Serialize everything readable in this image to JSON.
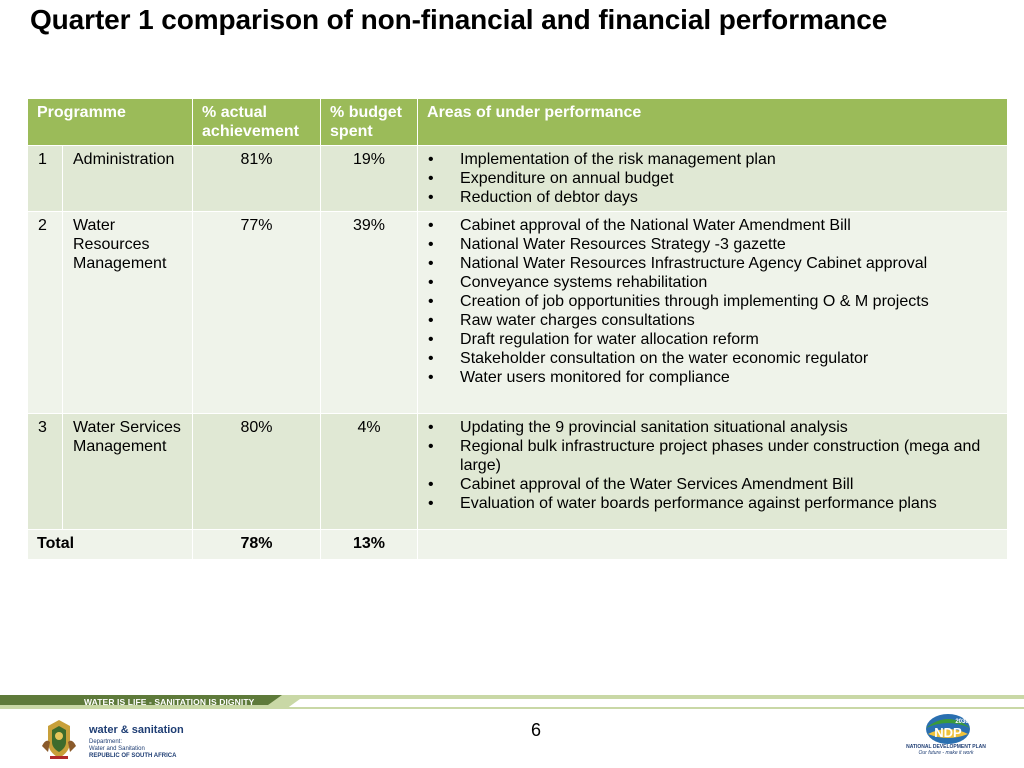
{
  "title": "Quarter 1 comparison of non-financial and financial performance",
  "table": {
    "headers": {
      "programme": "Programme",
      "actual": "% actual achievement",
      "budget": "% budget spent",
      "areas": "Areas of under performance"
    },
    "rows": [
      {
        "num": "1",
        "programme": "Administration",
        "actual": "81%",
        "budget": "19%",
        "areas": [
          "Implementation of the risk management plan",
          "Expenditure on annual budget",
          "Reduction of debtor days"
        ]
      },
      {
        "num": "2",
        "programme": "Water Resources Management",
        "actual": "77%",
        "budget": "39%",
        "areas": [
          "Cabinet approval of the National Water Amendment Bill",
          "National Water Resources Strategy -3 gazette",
          "National Water Resources Infrastructure Agency Cabinet approval",
          "Conveyance systems rehabilitation",
          "Creation of job opportunities through implementing O & M projects",
          "Raw water charges consultations",
          "Draft regulation for water allocation reform",
          "Stakeholder consultation on the water economic regulator",
          "Water users monitored for compliance"
        ]
      },
      {
        "num": "3",
        "programme": "Water Services Management",
        "actual": "80%",
        "budget": "4%",
        "areas": [
          "Updating the 9 provincial sanitation situational analysis",
          "Regional bulk infrastructure project phases under construction (mega and large)",
          "Cabinet approval of the Water Services Amendment Bill",
          "Evaluation of water boards performance against performance plans"
        ]
      }
    ],
    "total": {
      "label": "Total",
      "actual": "78%",
      "budget": "13%"
    }
  },
  "footer": {
    "slogan": "WATER IS LIFE - SANITATION IS DIGNITY",
    "page_number": "6",
    "dept_name": "water & sanitation",
    "dept_line1": "Department:",
    "dept_line2": "Water and Sanitation",
    "dept_line3": "REPUBLIC OF SOUTH AFRICA",
    "ndp_caption": "NATIONAL DEVELOPMENT PLAN",
    "ndp_tagline": "Our future - make it work",
    "ndp_year": "2030",
    "ndp_letters": "NDP"
  },
  "colors": {
    "header_green": "#9bbb59",
    "row_dark": "#e0e8d4",
    "row_light": "#eff3ea",
    "footer_green_dark": "#5e7a3a",
    "footer_green_light": "#c9d8a6",
    "navy": "#1f3e74"
  }
}
